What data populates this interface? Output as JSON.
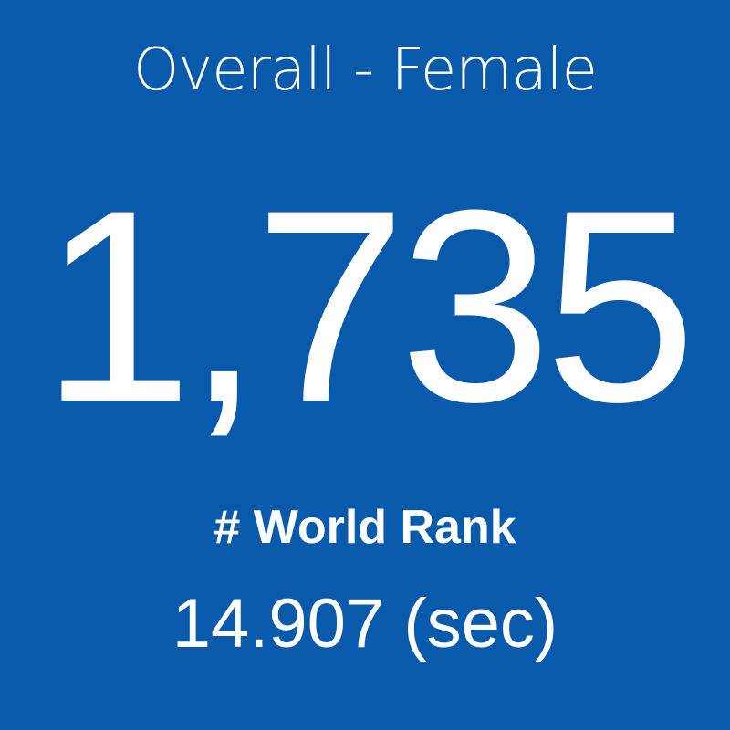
{
  "tile": {
    "title": "Overall - Female",
    "value": "1,735",
    "label": "# World Rank",
    "time": "14.907 (sec)"
  }
}
